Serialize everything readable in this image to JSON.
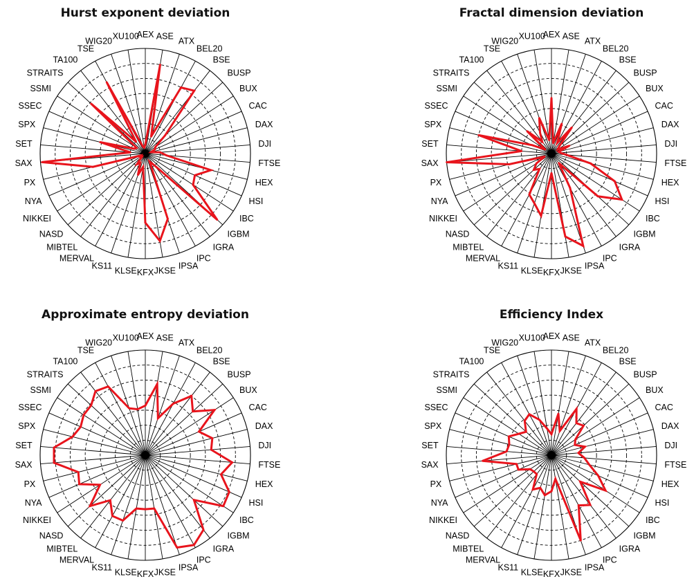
{
  "colors": {
    "series": "#e8141c",
    "spoke": "#000000",
    "ring": "#000000"
  },
  "chart_data": [
    {
      "type": "radar",
      "title": "Hurst exponent deviation",
      "categories": [
        "AEX",
        "ASE",
        "ATX",
        "BEL20",
        "BSE",
        "BUSP",
        "BUX",
        "CAC",
        "DAX",
        "DJI",
        "FTSE",
        "HEX",
        "HSI",
        "IBC",
        "IGBM",
        "IGRA",
        "IPC",
        "IPSA",
        "JKSE",
        "KFX",
        "KLSE",
        "KS11",
        "MERVAL",
        "MIBTEL",
        "NASD",
        "NIKKEI",
        "NYA",
        "PX",
        "SAX",
        "SET",
        "SPX",
        "SSEC",
        "SSMI",
        "STRAITS",
        "TA100",
        "TSE",
        "WIG20",
        "XU100"
      ],
      "values": [
        0.6,
        6.0,
        1.2,
        5.0,
        5.3,
        1.8,
        0.8,
        0.7,
        0.4,
        1.0,
        1.4,
        4.5,
        3.6,
        3.8,
        6.5,
        1.0,
        0.6,
        4.6,
        5.9,
        4.6,
        0.9,
        1.5,
        0.7,
        0.9,
        0.3,
        0.4,
        0.3,
        3.6,
        6.9,
        1.0,
        3.1,
        0.8,
        0.7,
        4.9,
        1.0,
        5.4,
        0.5,
        0.4
      ],
      "rlim": [
        0,
        7
      ],
      "rings": 7,
      "grid": true
    },
    {
      "type": "radar",
      "title": "Fractal dimension deviation",
      "categories": [
        "AEX",
        "ASE",
        "ATX",
        "BEL20",
        "BSE",
        "BUSP",
        "BUX",
        "CAC",
        "DAX",
        "DJI",
        "FTSE",
        "HEX",
        "HSI",
        "IBC",
        "IGBM",
        "IGRA",
        "IPC",
        "IPSA",
        "JKSE",
        "KFX",
        "KLSE",
        "KS11",
        "MERVAL",
        "MIBTEL",
        "NASD",
        "NIKKEI",
        "NYA",
        "PX",
        "SAX",
        "SET",
        "SPX",
        "SSEC",
        "SSMI",
        "STRAITS",
        "TA100",
        "TSE",
        "WIG20",
        "XU100"
      ],
      "values": [
        3.7,
        0.7,
        2.1,
        0.8,
        2.2,
        0.7,
        0.5,
        1.3,
        0.5,
        0.6,
        1.0,
        2.7,
        4.6,
        5.6,
        4.2,
        0.8,
        2.6,
        6.5,
        5.6,
        1.3,
        4.2,
        3.5,
        3.1,
        1.3,
        1.6,
        1.2,
        0.5,
        2.9,
        7.0,
        2.0,
        5.0,
        1.4,
        0.5,
        2.2,
        1.0,
        1.6,
        2.5,
        0.9
      ],
      "rlim": [
        0,
        7
      ],
      "rings": 7,
      "grid": true
    },
    {
      "type": "radar",
      "title": "Approximate entropy deviation",
      "categories": [
        "AEX",
        "ASE",
        "ATX",
        "BEL20",
        "BSE",
        "BUSP",
        "BUX",
        "CAC",
        "DAX",
        "DJI",
        "FTSE",
        "HEX",
        "HSI",
        "IBC",
        "IGBM",
        "IGRA",
        "IPC",
        "IPSA",
        "JKSE",
        "KFX",
        "KLSE",
        "KS11",
        "MERVAL",
        "MIBTEL",
        "NASD",
        "NIKKEI",
        "NYA",
        "PX",
        "SAX",
        "SET",
        "SPX",
        "SSEC",
        "SSMI",
        "STRAITS",
        "TA100",
        "TSE",
        "WIG20",
        "XU100"
      ],
      "values": [
        3.3,
        4.8,
        2.6,
        3.9,
        5.0,
        4.3,
        5.5,
        3.9,
        4.6,
        4.4,
        5.8,
        5.2,
        6.1,
        6.2,
        4.4,
        6.3,
        6.8,
        6.5,
        3.6,
        3.6,
        3.6,
        4.6,
        4.6,
        3.8,
        5.0,
        3.6,
        4.8,
        4.6,
        6.1,
        6.1,
        5.0,
        4.7,
        4.9,
        4.9,
        5.4,
        5.2,
        3.3,
        3.1
      ],
      "rlim": [
        0,
        7
      ],
      "rings": 7,
      "grid": true
    },
    {
      "type": "radar",
      "title": "Efficiency Index",
      "categories": [
        "AEX",
        "ASE",
        "ATX",
        "BEL20",
        "BSE",
        "BUSP",
        "BUX",
        "CAC",
        "DAX",
        "DJI",
        "FTSE",
        "HEX",
        "HSI",
        "IBC",
        "IGBM",
        "IGRA",
        "IPC",
        "IPSA",
        "JKSE",
        "KFX",
        "KLSE",
        "KS11",
        "MERVAL",
        "MIBTEL",
        "NASD",
        "NIKKEI",
        "NYA",
        "PX",
        "SAX",
        "SET",
        "SPX",
        "SSEC",
        "SSMI",
        "STRAITS",
        "TA100",
        "TSE",
        "WIG20",
        "XU100"
      ],
      "values": [
        1.4,
        2.8,
        1.7,
        3.5,
        2.7,
        2.9,
        1.9,
        1.7,
        2.3,
        1.8,
        2.2,
        2.6,
        3.4,
        4.3,
        2.6,
        4.2,
        3.8,
        6.0,
        1.6,
        2.4,
        2.7,
        2.3,
        2.6,
        1.6,
        1.6,
        1.7,
        2.4,
        2.4,
        4.6,
        3.0,
        2.9,
        3.1,
        2.6,
        2.3,
        2.9,
        3.1,
        2.5,
        1.8
      ],
      "rlim": [
        0,
        7
      ],
      "rings": 7,
      "grid": true
    }
  ]
}
